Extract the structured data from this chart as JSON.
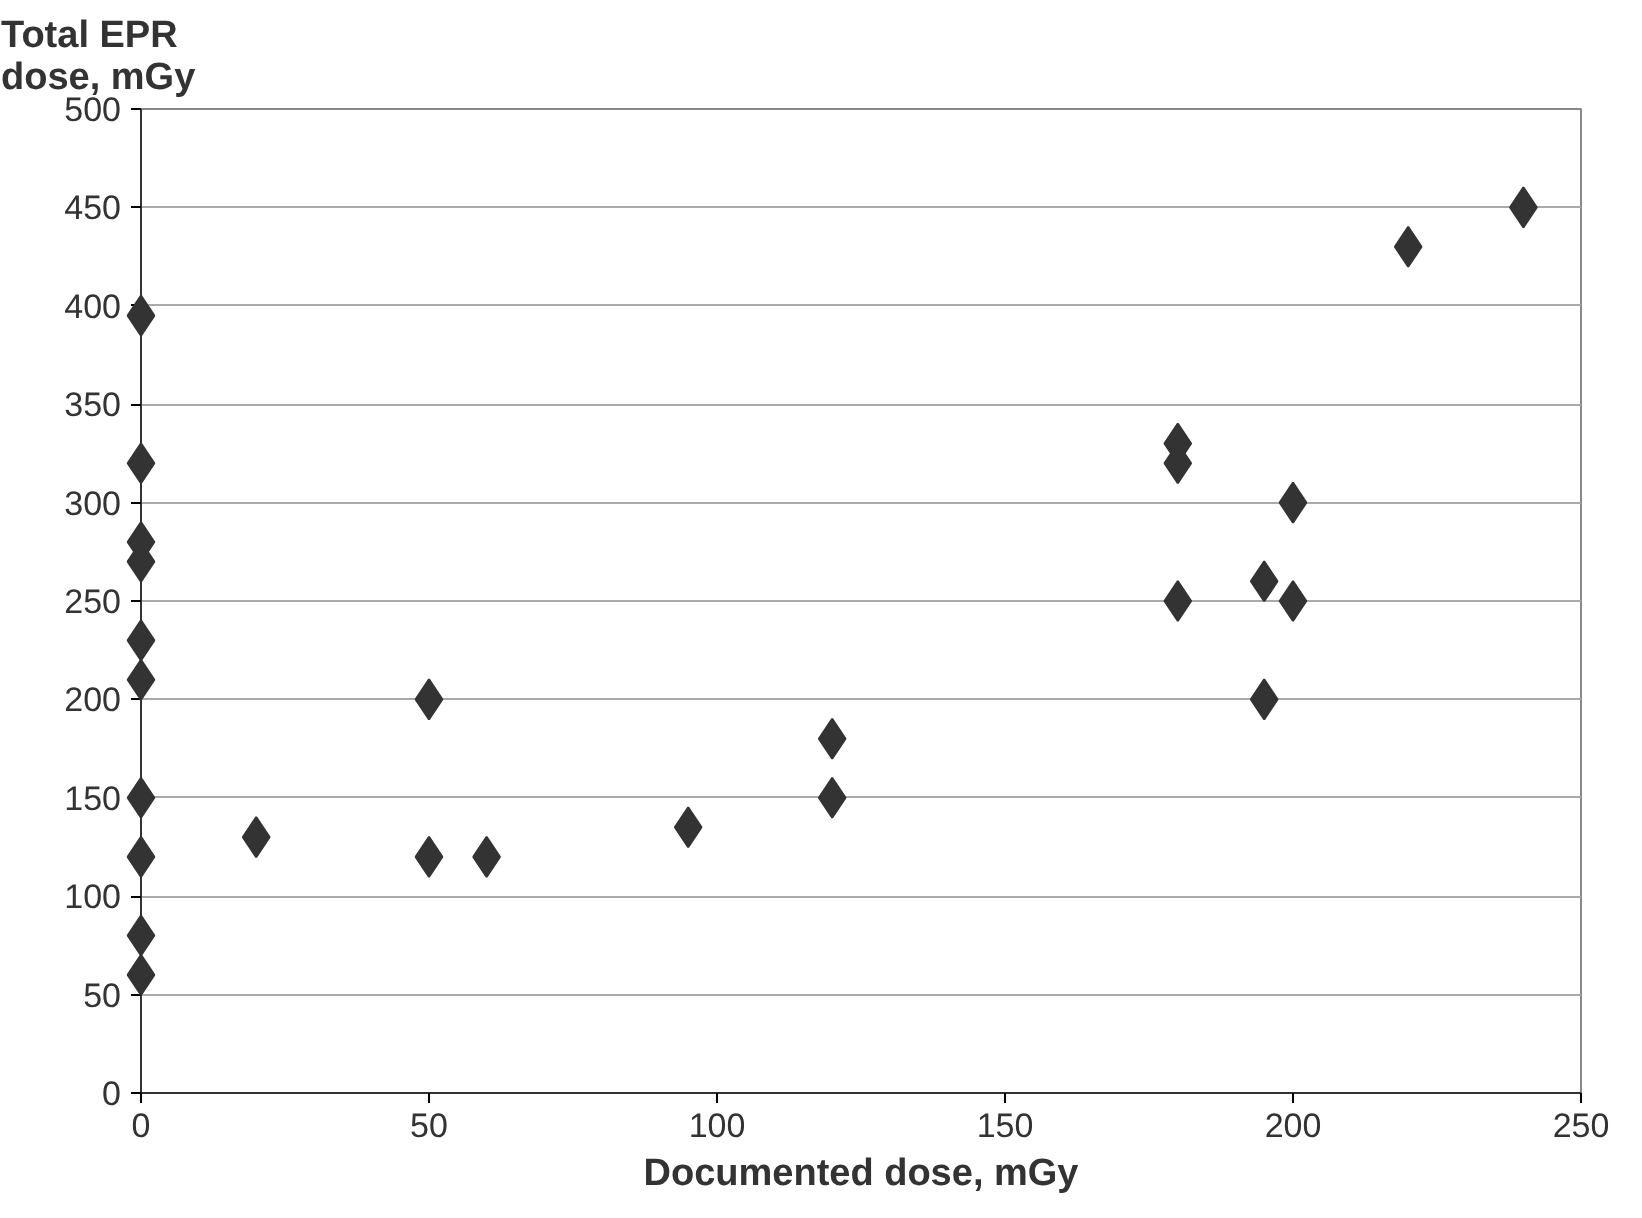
{
  "chart_data": {
    "type": "scatter",
    "ylabel": "Total EPR\ndose, mGy",
    "xlabel": "Documented dose, mGy",
    "marker": "diamond",
    "grid": "y",
    "x": [
      0,
      0,
      0,
      0,
      0,
      0,
      0,
      0,
      0,
      0,
      20,
      50,
      50,
      60,
      95,
      120,
      120,
      180,
      180,
      180,
      195,
      195,
      200,
      200,
      220,
      240
    ],
    "series": [
      {
        "color": "#333333",
        "values": [
          395,
          320,
          280,
          270,
          230,
          210,
          150,
          120,
          80,
          60,
          130,
          200,
          120,
          120,
          135,
          180,
          150,
          330,
          320,
          250,
          260,
          200,
          300,
          250,
          430,
          450
        ]
      }
    ],
    "xlim": [
      0,
      250
    ],
    "ylim": [
      0,
      500
    ],
    "xticks": [
      0,
      50,
      100,
      150,
      200,
      250
    ],
    "yticks": [
      0,
      50,
      100,
      150,
      200,
      250,
      300,
      350,
      400,
      450,
      500
    ]
  }
}
